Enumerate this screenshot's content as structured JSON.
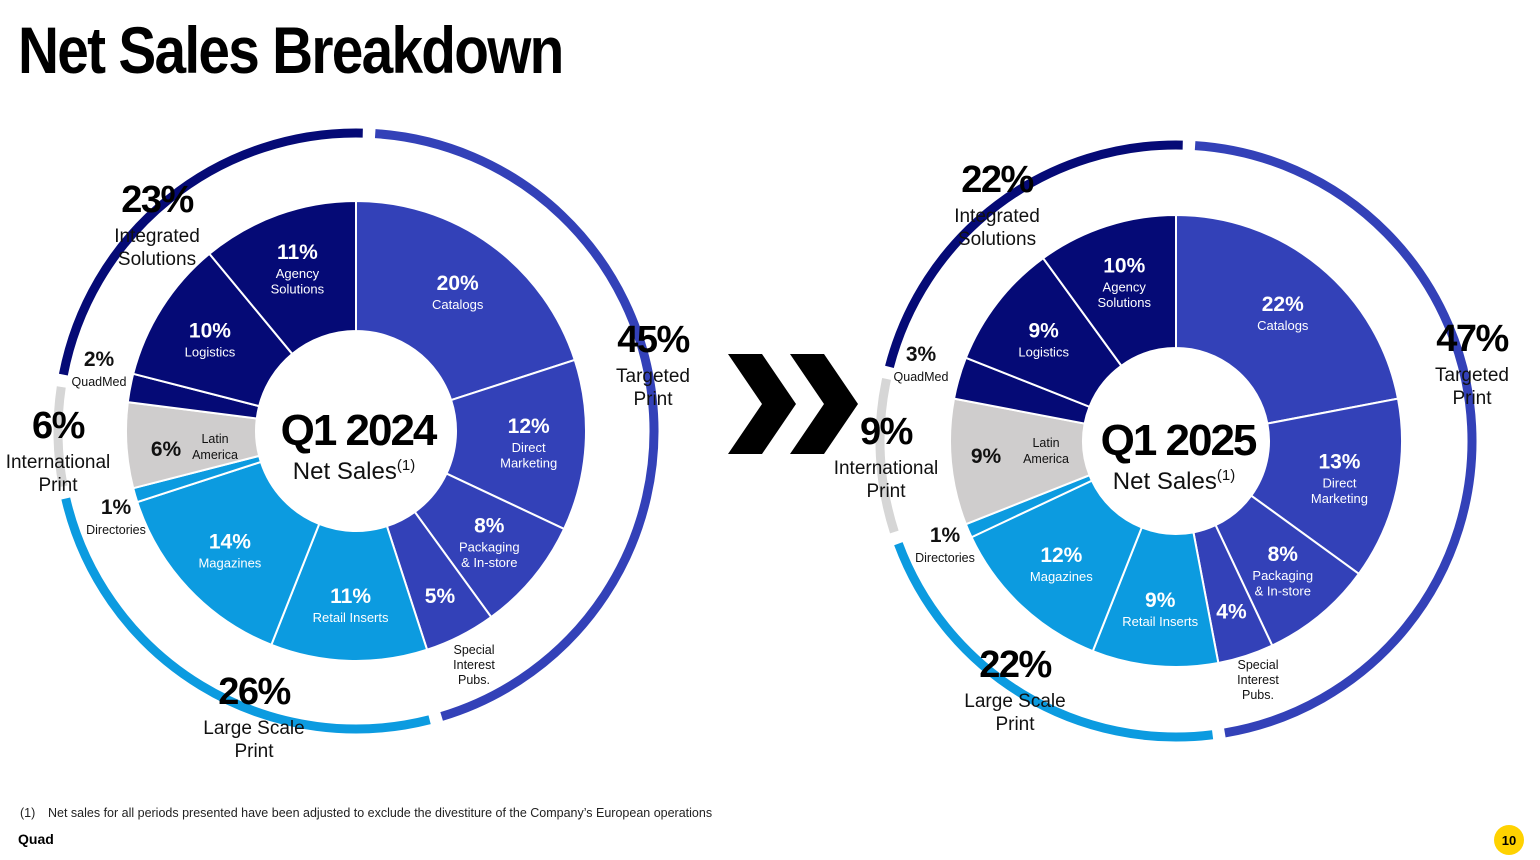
{
  "title": "Net Sales Breakdown",
  "colors": {
    "dark_navy": "#050A76",
    "royal": "#3341B8",
    "sky": "#0C9BE0",
    "gray": "#CFCDCD",
    "gray_ring": "#D6D6D6",
    "badge": "#FFD200"
  },
  "chart_data": [
    {
      "type": "pie",
      "center_label": "Q1 2024",
      "center_sublabel": "Net Sales",
      "center_sup": "(1)",
      "slices": [
        {
          "pct_label": "20%",
          "name": "Catalogs",
          "value": 20,
          "group": "Targeted Print"
        },
        {
          "pct_label": "12%",
          "name": "Direct Marketing",
          "value": 12,
          "group": "Targeted Print"
        },
        {
          "pct_label": "8%",
          "name": "Packaging & In-store",
          "value": 8,
          "group": "Targeted Print"
        },
        {
          "pct_label": "5%",
          "name": "Special Interest Pubs.",
          "value": 5,
          "group": "Targeted Print"
        },
        {
          "pct_label": "11%",
          "name": "Retail Inserts",
          "value": 11,
          "group": "Large Scale Print"
        },
        {
          "pct_label": "14%",
          "name": "Magazines",
          "value": 14,
          "group": "Large Scale Print"
        },
        {
          "pct_label": "1%",
          "name": "Directories",
          "value": 1,
          "group": "Large Scale Print"
        },
        {
          "pct_label": "6%",
          "name": "Latin America",
          "value": 6,
          "group": "International Print"
        },
        {
          "pct_label": "2%",
          "name": "QuadMed",
          "value": 2,
          "group": "Integrated Solutions"
        },
        {
          "pct_label": "10%",
          "name": "Logistics",
          "value": 10,
          "group": "Integrated Solutions"
        },
        {
          "pct_label": "11%",
          "name": "Agency Solutions",
          "value": 11,
          "group": "Integrated Solutions"
        }
      ],
      "groups": [
        {
          "pct_label": "45%",
          "name": "Targeted Print",
          "value": 45
        },
        {
          "pct_label": "26%",
          "name": "Large Scale Print",
          "value": 26
        },
        {
          "pct_label": "6%",
          "name": "International Print",
          "value": 6
        },
        {
          "pct_label": "23%",
          "name": "Integrated Solutions",
          "value": 23
        }
      ]
    },
    {
      "type": "pie",
      "center_label": "Q1 2025",
      "center_sublabel": "Net Sales",
      "center_sup": "(1)",
      "slices": [
        {
          "pct_label": "22%",
          "name": "Catalogs",
          "value": 22,
          "group": "Targeted Print"
        },
        {
          "pct_label": "13%",
          "name": "Direct Marketing",
          "value": 13,
          "group": "Targeted Print"
        },
        {
          "pct_label": "8%",
          "name": "Packaging & In-store",
          "value": 8,
          "group": "Targeted Print"
        },
        {
          "pct_label": "4%",
          "name": "Special Interest Pubs.",
          "value": 4,
          "group": "Targeted Print"
        },
        {
          "pct_label": "9%",
          "name": "Retail Inserts",
          "value": 9,
          "group": "Large Scale Print"
        },
        {
          "pct_label": "12%",
          "name": "Magazines",
          "value": 12,
          "group": "Large Scale Print"
        },
        {
          "pct_label": "1%",
          "name": "Directories",
          "value": 1,
          "group": "Large Scale Print"
        },
        {
          "pct_label": "9%",
          "name": "Latin America",
          "value": 9,
          "group": "International Print"
        },
        {
          "pct_label": "3%",
          "name": "QuadMed",
          "value": 3,
          "group": "Integrated Solutions"
        },
        {
          "pct_label": "9%",
          "name": "Logistics",
          "value": 9,
          "group": "Integrated Solutions"
        },
        {
          "pct_label": "10%",
          "name": "Agency Solutions",
          "value": 10,
          "group": "Integrated Solutions"
        }
      ],
      "groups": [
        {
          "pct_label": "47%",
          "name": "Targeted Print",
          "value": 47
        },
        {
          "pct_label": "22%",
          "name": "Large Scale Print",
          "value": 22
        },
        {
          "pct_label": "9%",
          "name": "International Print",
          "value": 9
        },
        {
          "pct_label": "22%",
          "name": "Integrated Solutions",
          "value": 22
        }
      ]
    }
  ],
  "footnote": {
    "marker": "(1)",
    "text": "Net sales for all periods presented have been adjusted to exclude the divestiture of the Company’s European operations"
  },
  "brand": "Quad",
  "page_number": "10"
}
